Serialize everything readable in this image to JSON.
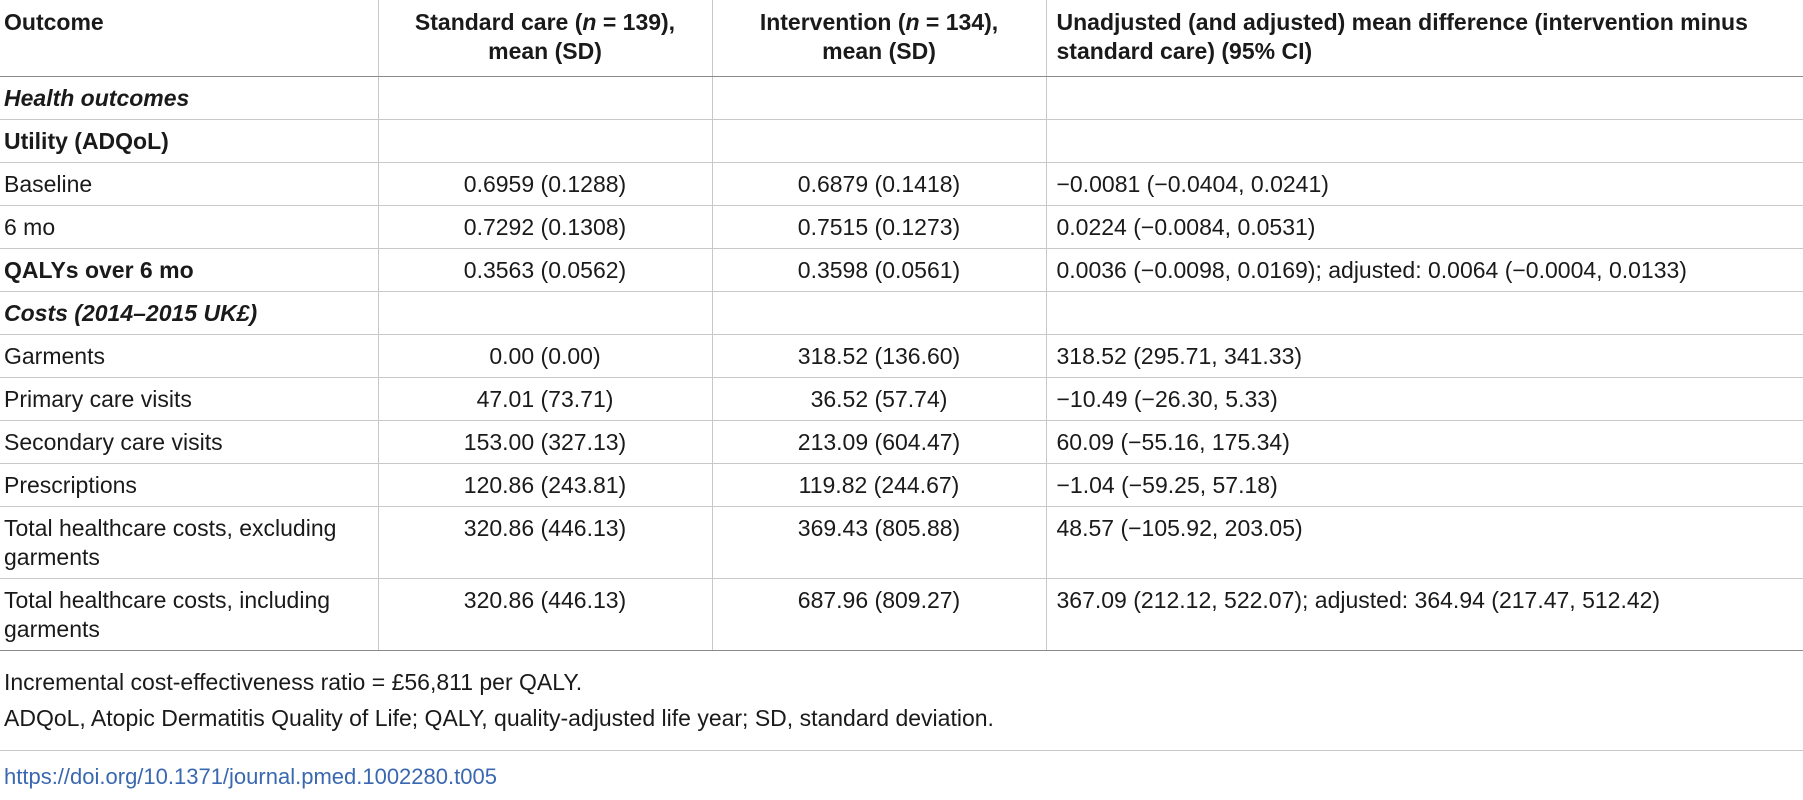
{
  "table": {
    "headers": {
      "outcome": "Outcome",
      "standard_care": {
        "prefix": "Standard care (",
        "n_symbol": "n",
        "n_value": " = 139),",
        "suffix": "mean (SD)"
      },
      "intervention": {
        "prefix": "Intervention (",
        "n_symbol": "n",
        "n_value": " = 134),",
        "suffix": "mean (SD)"
      },
      "difference": "Unadjusted (and adjusted) mean difference (intervention minus standard care) (95% CI)"
    },
    "rows": [
      {
        "type": "section",
        "label": "Health outcomes",
        "standard_care": "",
        "intervention": "",
        "difference": ""
      },
      {
        "type": "subheading",
        "label": "Utility (ADQoL)",
        "standard_care": "",
        "intervention": "",
        "difference": ""
      },
      {
        "type": "row",
        "label": "Baseline",
        "standard_care": "0.6959 (0.1288)",
        "intervention": "0.6879 (0.1418)",
        "difference": "−0.0081 (−0.0404, 0.0241)"
      },
      {
        "type": "row",
        "label": "6 mo",
        "standard_care": "0.7292 (0.1308)",
        "intervention": "0.7515 (0.1273)",
        "difference": "0.0224 (−0.0084, 0.0531)"
      },
      {
        "type": "bold-label",
        "label": "QALYs over 6 mo",
        "standard_care": "0.3563 (0.0562)",
        "intervention": "0.3598 (0.0561)",
        "difference": "0.0036 (−0.0098, 0.0169); adjusted: 0.0064 (−0.0004, 0.0133)"
      },
      {
        "type": "section",
        "label": "Costs (2014–2015 UK£)",
        "standard_care": "",
        "intervention": "",
        "difference": ""
      },
      {
        "type": "row",
        "label": "Garments",
        "standard_care": "0.00 (0.00)",
        "intervention": "318.52 (136.60)",
        "difference": "318.52 (295.71, 341.33)"
      },
      {
        "type": "row",
        "label": "Primary care visits",
        "standard_care": "47.01 (73.71)",
        "intervention": "36.52 (57.74)",
        "difference": "−10.49 (−26.30, 5.33)"
      },
      {
        "type": "row",
        "label": "Secondary care visits",
        "standard_care": "153.00 (327.13)",
        "intervention": "213.09 (604.47)",
        "difference": "60.09 (−55.16, 175.34)"
      },
      {
        "type": "row",
        "label": "Prescriptions",
        "standard_care": "120.86 (243.81)",
        "intervention": "119.82 (244.67)",
        "difference": "−1.04 (−59.25, 57.18)"
      },
      {
        "type": "row",
        "label": "Total healthcare costs, excluding garments",
        "standard_care": "320.86 (446.13)",
        "intervention": "369.43 (805.88)",
        "difference": "48.57 (−105.92, 203.05)"
      },
      {
        "type": "row",
        "label": "Total healthcare costs, including garments",
        "standard_care": "320.86 (446.13)",
        "intervention": "687.96 (809.27)",
        "difference": "367.09 (212.12, 522.07); adjusted: 364.94 (217.47, 512.42)"
      }
    ]
  },
  "footnotes": {
    "icer": "Incremental cost-effectiveness ratio = £56,811 per QALY.",
    "abbreviations": "ADQoL, Atopic Dermatitis Quality of Life; QALY, quality-adjusted life year; SD, standard deviation."
  },
  "doi": {
    "text": "https://doi.org/10.1371/journal.pmed.1002280.t005"
  },
  "colors": {
    "text": "#1a1a1a",
    "rule": "#c8c8c8",
    "link": "#3a68b0"
  }
}
